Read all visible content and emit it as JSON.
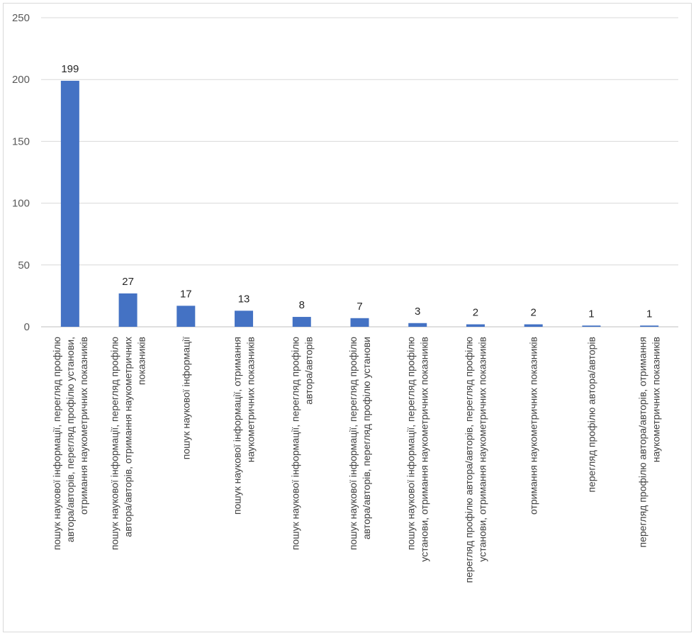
{
  "chart_data": {
    "type": "bar",
    "title": "",
    "xlabel": "",
    "ylabel": "",
    "ylim": [
      0,
      250
    ],
    "yticks": [
      0,
      50,
      100,
      150,
      200,
      250
    ],
    "grid": true,
    "legend": "none",
    "bar_color": "#4472C4",
    "categories": [
      [
        "пошук наукової інформації, перегляд профілю",
        "автора/авторів, перегляд профілю установи,",
        "отримання наукометричних показників"
      ],
      [
        "пошук наукової інформації, перегляд профілю",
        "автора/авторів, отримання наукометричних",
        "показників"
      ],
      [
        "пошук наукової інформації"
      ],
      [
        "пошук наукової інформації, отримання",
        "наукометричних показників"
      ],
      [
        "пошук наукової інформації, перегляд профілю",
        "автора/авторів"
      ],
      [
        "пошук наукової інформації, перегляд профілю",
        "автора/авторів, перегляд профілю установи"
      ],
      [
        "пошук наукової інформації, перегляд профілю",
        "установи, отримання наукометричних показників"
      ],
      [
        "перегляд профілю автора/авторів, перегляд профілю",
        "установи, отримання наукометричних показників"
      ],
      [
        "отримання наукометричних показників"
      ],
      [
        "перегляд профілю автора/авторів"
      ],
      [
        "перегляд профілю автора/авторів, отримання",
        "наукометричних показників"
      ]
    ],
    "values": [
      199,
      27,
      17,
      13,
      8,
      7,
      3,
      2,
      2,
      1,
      1
    ]
  }
}
